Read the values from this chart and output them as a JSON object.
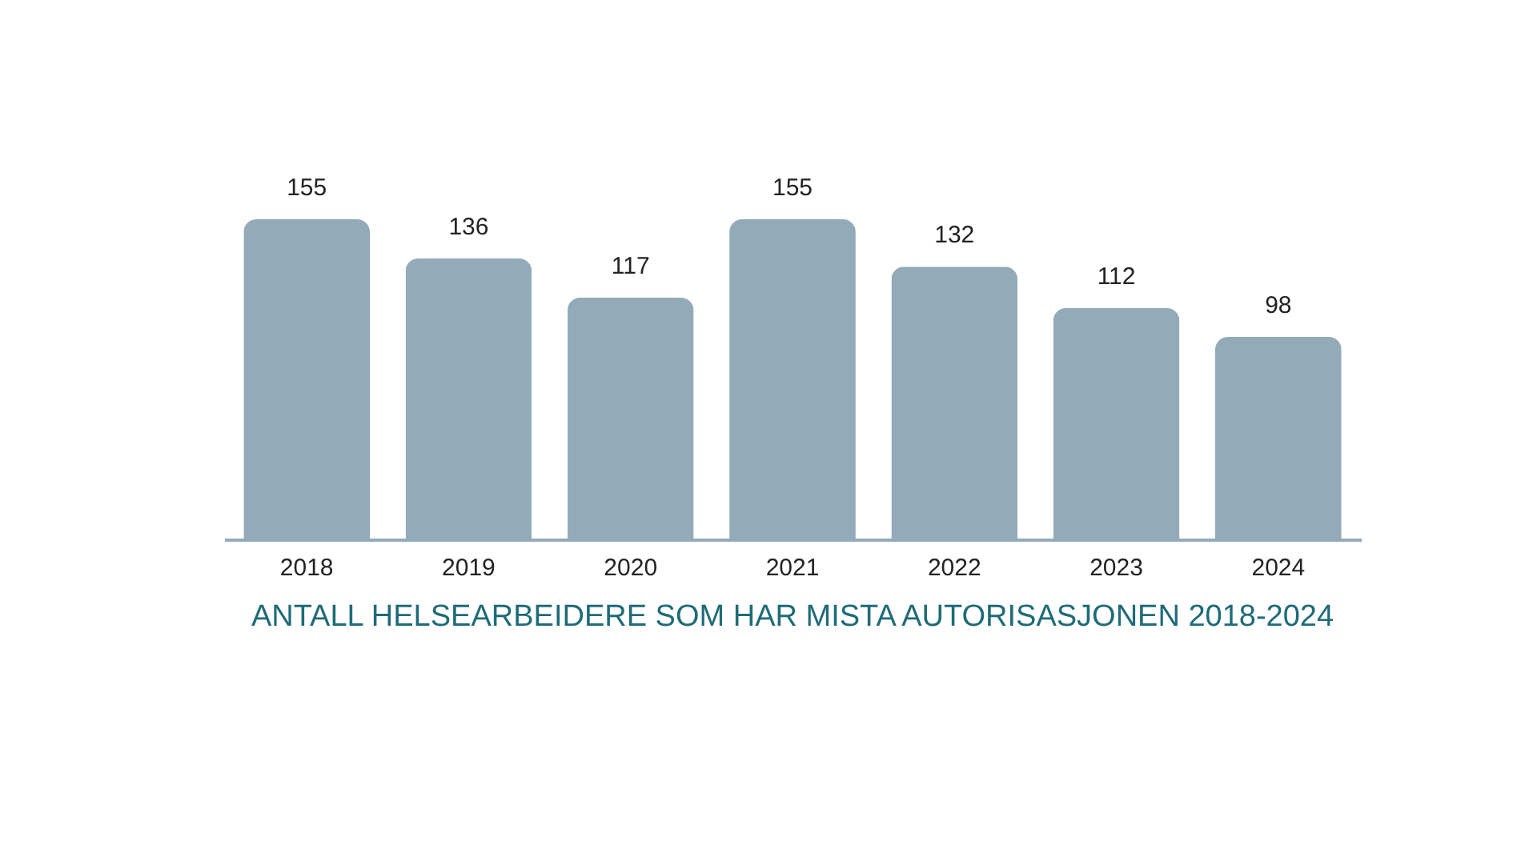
{
  "chart_data": {
    "type": "bar",
    "title": "ANTALL HELSEARBEIDERE SOM HAR MISTA AUTORISASJONEN 2018-2024",
    "categories": [
      "2018",
      "2019",
      "2020",
      "2021",
      "2022",
      "2023",
      "2024"
    ],
    "values": [
      155,
      136,
      117,
      155,
      132,
      112,
      98
    ],
    "color": "#93aab9",
    "data_labels": true,
    "grid": false
  }
}
